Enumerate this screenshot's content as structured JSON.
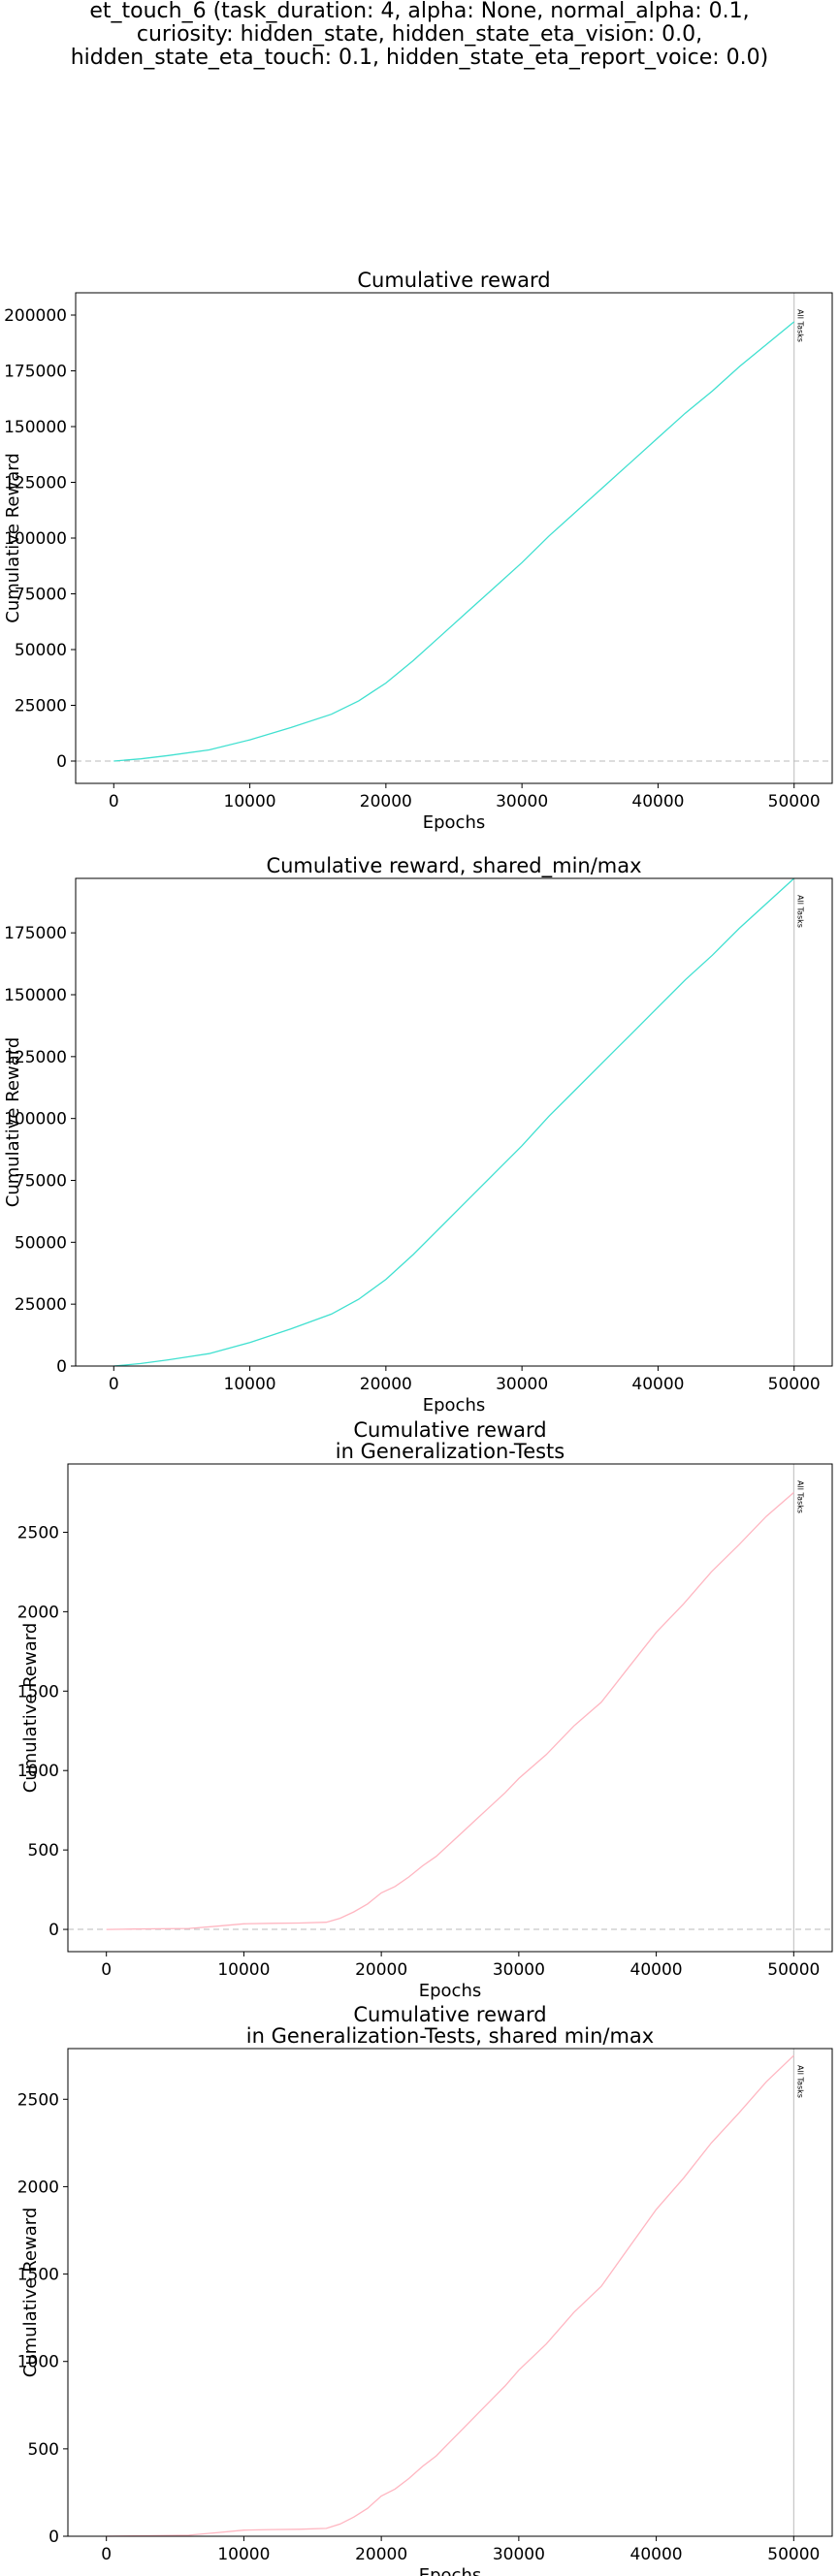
{
  "figure": {
    "title_lines": [
      "et_touch_6 (task_duration: 4, alpha: None, normal_alpha: 0.1,",
      "curiosity: hidden_state, hidden_state_eta_vision: 0.0,",
      "hidden_state_eta_touch: 0.1, hidden_state_eta_report_voice: 0.0)"
    ]
  },
  "colors": {
    "train": "#40e0d0",
    "generalization": "#ffb6c1",
    "marker": "#bbbbbb",
    "zero_line": "#bbbbbb"
  },
  "chart_data": [
    {
      "type": "line",
      "title": "Cumulative reward",
      "xlabel": "Epochs",
      "ylabel": "Cumulative Reward",
      "xlim": [
        -2800,
        52800
      ],
      "ylim": [
        -10000,
        210000
      ],
      "xticks": [
        0,
        10000,
        20000,
        30000,
        40000,
        50000
      ],
      "yticks": [
        0,
        25000,
        50000,
        75000,
        100000,
        125000,
        150000,
        175000,
        200000
      ],
      "zero_line": true,
      "vline": {
        "x": 50000,
        "label": "All Tasks"
      },
      "series": [
        {
          "color": "train",
          "x": [
            0,
            2000,
            4000,
            7000,
            10000,
            13000,
            16000,
            18000,
            20000,
            22000,
            24000,
            26000,
            28000,
            30000,
            32000,
            34000,
            36000,
            38000,
            40000,
            42000,
            44000,
            46000,
            48000,
            50000
          ],
          "y": [
            0,
            1000,
            2500,
            5000,
            9500,
            15000,
            21000,
            27000,
            35000,
            45000,
            56000,
            67000,
            78000,
            89000,
            101000,
            112000,
            123000,
            134000,
            145000,
            156000,
            166000,
            177000,
            187000,
            197000
          ]
        }
      ]
    },
    {
      "type": "line",
      "title": "Cumulative reward, shared_min/max",
      "xlabel": "Epochs",
      "ylabel": "Cumulative Reward",
      "xlim": [
        -2800,
        52800
      ],
      "ylim": [
        0,
        197000
      ],
      "xticks": [
        0,
        10000,
        20000,
        30000,
        40000,
        50000
      ],
      "yticks": [
        0,
        25000,
        50000,
        75000,
        100000,
        125000,
        150000,
        175000
      ],
      "zero_line": false,
      "vline": {
        "x": 50000,
        "label": "All Tasks"
      },
      "series": [
        {
          "color": "train",
          "x": [
            0,
            2000,
            4000,
            7000,
            10000,
            13000,
            16000,
            18000,
            20000,
            22000,
            24000,
            26000,
            28000,
            30000,
            32000,
            34000,
            36000,
            38000,
            40000,
            42000,
            44000,
            46000,
            48000,
            50000
          ],
          "y": [
            0,
            1000,
            2500,
            5000,
            9500,
            15000,
            21000,
            27000,
            35000,
            45000,
            56000,
            67000,
            78000,
            89000,
            101000,
            112000,
            123000,
            134000,
            145000,
            156000,
            166000,
            177000,
            187000,
            197000
          ]
        }
      ]
    },
    {
      "type": "line",
      "title": "Cumulative reward\nin Generalization-Tests",
      "xlabel": "Epochs",
      "ylabel": "Cumulative Reward",
      "xlim": [
        -2800,
        52800
      ],
      "ylim": [
        -140,
        2930
      ],
      "xticks": [
        0,
        10000,
        20000,
        30000,
        40000,
        50000
      ],
      "yticks": [
        0,
        500,
        1000,
        1500,
        2000,
        2500
      ],
      "zero_line": true,
      "vline": {
        "x": 50000,
        "label": "All Tasks"
      },
      "series": [
        {
          "color": "generalization",
          "x": [
            0,
            2000,
            4000,
            6000,
            8000,
            10000,
            12000,
            14000,
            16000,
            17000,
            18000,
            19000,
            20000,
            21000,
            22000,
            23000,
            24000,
            25000,
            26000,
            27000,
            28000,
            29000,
            30000,
            32000,
            34000,
            36000,
            38000,
            40000,
            42000,
            44000,
            46000,
            48000,
            50000
          ],
          "y": [
            0,
            2,
            4,
            6,
            20,
            35,
            38,
            40,
            45,
            70,
            110,
            160,
            230,
            270,
            330,
            400,
            460,
            540,
            620,
            700,
            780,
            860,
            950,
            1100,
            1280,
            1430,
            1650,
            1870,
            2050,
            2250,
            2420,
            2600,
            2750
          ]
        }
      ]
    },
    {
      "type": "line",
      "title": "Cumulative reward\nin Generalization-Tests, shared min/max",
      "xlabel": "Epochs",
      "ylabel": "Cumulative Reward",
      "xlim": [
        -2800,
        52800
      ],
      "ylim": [
        0,
        2790
      ],
      "xticks": [
        0,
        10000,
        20000,
        30000,
        40000,
        50000
      ],
      "yticks": [
        0,
        500,
        1000,
        1500,
        2000,
        2500
      ],
      "zero_line": false,
      "vline": {
        "x": 50000,
        "label": "All Tasks"
      },
      "series": [
        {
          "color": "generalization",
          "x": [
            0,
            2000,
            4000,
            6000,
            8000,
            10000,
            12000,
            14000,
            16000,
            17000,
            18000,
            19000,
            20000,
            21000,
            22000,
            23000,
            24000,
            25000,
            26000,
            27000,
            28000,
            29000,
            30000,
            32000,
            34000,
            36000,
            38000,
            40000,
            42000,
            44000,
            46000,
            48000,
            50000
          ],
          "y": [
            0,
            2,
            4,
            6,
            20,
            35,
            38,
            40,
            45,
            70,
            110,
            160,
            230,
            270,
            330,
            400,
            460,
            540,
            620,
            700,
            780,
            860,
            950,
            1100,
            1280,
            1430,
            1650,
            1870,
            2050,
            2250,
            2420,
            2600,
            2750
          ]
        }
      ]
    }
  ]
}
